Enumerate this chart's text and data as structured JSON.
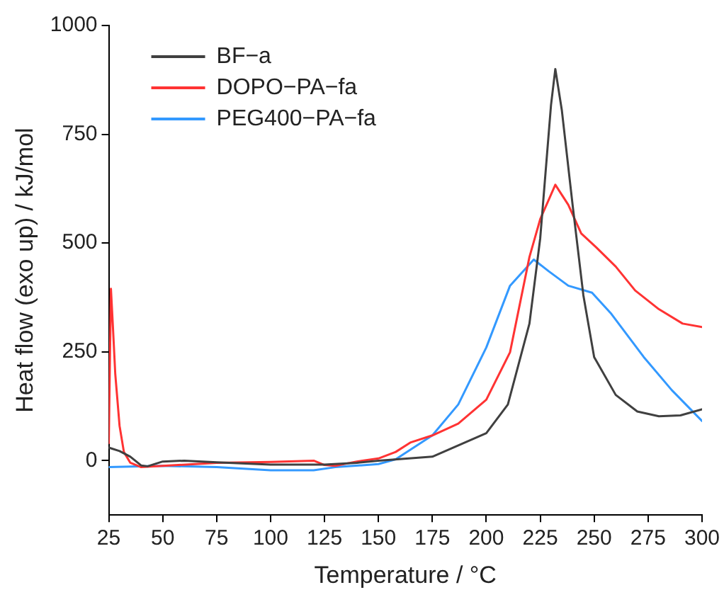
{
  "chart_data": {
    "type": "line",
    "xlabel": "Temperature / °C",
    "ylabel": "Heat flow (exo up) / kJ/mol",
    "xlim": [
      25,
      300
    ],
    "xticks": [
      25,
      50,
      75,
      100,
      125,
      150,
      175,
      200,
      225,
      250,
      275,
      300
    ],
    "ylim": [
      -125,
      1000
    ],
    "yticks": [
      0,
      250,
      500,
      750,
      1000
    ],
    "grid": false,
    "legend": "top left",
    "marker": "none",
    "line_style": "solid",
    "series": [
      {
        "name": "BF−a",
        "color": "#404040",
        "x": [
          25,
          30,
          35,
          40,
          43,
          50,
          60,
          75,
          100,
          125,
          140,
          150,
          175,
          200,
          210,
          220,
          225,
          230,
          232,
          235,
          240,
          245,
          250,
          260,
          270,
          280,
          290,
          300
        ],
        "values": [
          30,
          22,
          9,
          -11,
          -13,
          -2,
          0,
          -4,
          -9,
          -9,
          -5,
          0,
          9,
          63,
          129,
          315,
          511,
          817,
          900,
          806,
          588,
          380,
          238,
          151,
          113,
          102,
          104,
          118
        ]
      },
      {
        "name": "DOPO−PA−fa",
        "color": "#ff3333",
        "x": [
          25,
          26,
          27,
          28,
          30,
          32,
          35,
          40,
          50,
          75,
          100,
          120,
          125,
          130,
          140,
          150,
          158,
          165,
          175,
          187,
          200,
          211,
          220,
          225,
          232,
          238,
          244,
          251,
          260,
          269,
          280,
          291,
          300
        ],
        "values": [
          40,
          395,
          300,
          200,
          80,
          20,
          -5,
          -15,
          -12,
          -5,
          -3,
          0,
          -10,
          -12,
          -2,
          5,
          20,
          42,
          58,
          85,
          140,
          249,
          468,
          555,
          634,
          588,
          522,
          490,
          446,
          391,
          348,
          315,
          307
        ]
      },
      {
        "name": "PEG400−PA−fa",
        "color": "#3399ff",
        "x": [
          25,
          50,
          75,
          100,
          120,
          130,
          150,
          158,
          175,
          187,
          200,
          211,
          222,
          229,
          238,
          249,
          258,
          273,
          286,
          300
        ],
        "values": [
          -15,
          -12,
          -15,
          -22,
          -22,
          -15,
          -8,
          3,
          58,
          129,
          260,
          402,
          462,
          435,
          402,
          386,
          337,
          238,
          162,
          91
        ]
      }
    ]
  }
}
